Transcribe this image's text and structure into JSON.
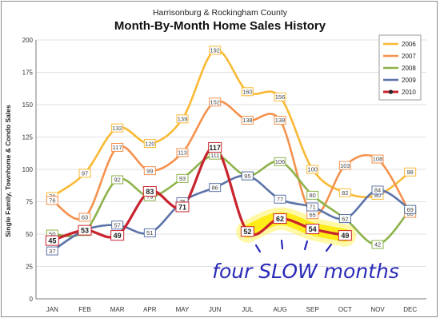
{
  "chart_data": {
    "type": "line",
    "subtitle": "Harrisonburg & Rockingham County",
    "title": "Month-By-Month Home Sales History",
    "ylabel": "Single Family, Townhome & Condo Sales",
    "xlabel": "",
    "categories": [
      "JAN",
      "FEB",
      "MAR",
      "APR",
      "MAY",
      "JUN",
      "JUL",
      "AUG",
      "SEP",
      "OCT",
      "NOV",
      "DEC"
    ],
    "ylim": [
      0,
      200
    ],
    "yticks": [
      0,
      25,
      50,
      75,
      100,
      125,
      150,
      175,
      200
    ],
    "grid": true,
    "legend_position": "top-right",
    "series": [
      {
        "name": "2006",
        "color": "#f9b934",
        "values": [
          79,
          97,
          132,
          120,
          139,
          192,
          160,
          156,
          100,
          82,
          80,
          98
        ]
      },
      {
        "name": "2007",
        "color": "#f4914d",
        "values": [
          76,
          63,
          117,
          99,
          113,
          152,
          138,
          138,
          65,
          103,
          108,
          66
        ]
      },
      {
        "name": "2008",
        "color": "#8db24a",
        "values": [
          50,
          52,
          92,
          79,
          93,
          111,
          95,
          106,
          80,
          62,
          42,
          69
        ]
      },
      {
        "name": "2009",
        "color": "#5b73a8",
        "values": [
          37,
          53,
          57,
          51,
          75,
          86,
          95,
          77,
          71,
          62,
          84,
          69
        ]
      },
      {
        "name": "2010",
        "color": "#c8232e",
        "values": [
          45,
          53,
          49,
          83,
          71,
          117,
          52,
          62,
          54,
          49,
          null,
          null
        ]
      }
    ],
    "annotation": "four SLOW months"
  }
}
